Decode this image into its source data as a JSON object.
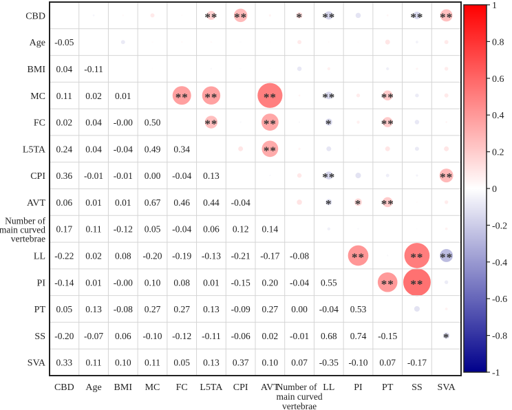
{
  "chart_data": {
    "type": "heatmap",
    "subtype": "correlation-matrix (lower: values, upper: circles + significance)",
    "title": "",
    "variables": [
      "CBD",
      "Age",
      "BMI",
      "MC",
      "FC",
      "L5TA",
      "CPI",
      "AVT",
      "Number of main curved vertebrae",
      "LL",
      "PI",
      "PT",
      "SS",
      "SVA"
    ],
    "x_labels": [
      "CBD",
      "Age",
      "BMI",
      "MC",
      "FC",
      "L5TA",
      "CPI",
      "AVT",
      "Number of main curved vertebrae",
      "LL",
      "PI",
      "PT",
      "SS",
      "SVA"
    ],
    "y_labels": [
      "CBD",
      "Age",
      "BMI",
      "MC",
      "FC",
      "L5TA",
      "CPI",
      "AVT",
      "Number of main curved vertebrae",
      "LL",
      "PI",
      "PT",
      "SS",
      "SVA"
    ],
    "lower_triangle_values": [
      [],
      [
        "-0.05"
      ],
      [
        "0.04",
        "-0.11"
      ],
      [
        "0.11",
        "0.02",
        "0.01"
      ],
      [
        "0.02",
        "0.04",
        "-0.00",
        "0.50"
      ],
      [
        "0.24",
        "0.04",
        "-0.04",
        "0.49",
        "0.34"
      ],
      [
        "0.36",
        "-0.01",
        "-0.01",
        "0.00",
        "-0.04",
        "0.13"
      ],
      [
        "0.06",
        "0.01",
        "0.01",
        "0.67",
        "0.46",
        "0.44",
        "-0.04"
      ],
      [
        "0.17",
        "0.11",
        "-0.12",
        "0.05",
        "-0.04",
        "0.06",
        "0.12",
        "0.14"
      ],
      [
        "-0.22",
        "0.02",
        "0.08",
        "-0.20",
        "-0.19",
        "-0.13",
        "-0.21",
        "-0.17",
        "-0.08"
      ],
      [
        "-0.14",
        "0.01",
        "-0.00",
        "0.10",
        "0.08",
        "0.01",
        "-0.15",
        "0.20",
        "-0.04",
        "0.55"
      ],
      [
        "0.05",
        "0.13",
        "-0.08",
        "0.27",
        "0.27",
        "0.13",
        "-0.09",
        "0.27",
        "0.00",
        "-0.04",
        "0.53"
      ],
      [
        "-0.20",
        "-0.07",
        "0.06",
        "-0.10",
        "-0.12",
        "-0.11",
        "-0.06",
        "0.02",
        "-0.01",
        "0.68",
        "0.74",
        "-0.15"
      ],
      [
        "0.33",
        "0.11",
        "0.10",
        "0.11",
        "0.05",
        "0.13",
        "0.37",
        "0.10",
        "0.07",
        "-0.35",
        "-0.10",
        "0.07",
        "-0.17"
      ]
    ],
    "significance_upper": [
      {
        "row": "CBD",
        "col": "L5TA",
        "stars": "**"
      },
      {
        "row": "CBD",
        "col": "CPI",
        "stars": "**"
      },
      {
        "row": "CBD",
        "col": "Number of main curved vertebrae",
        "stars": "*"
      },
      {
        "row": "CBD",
        "col": "LL",
        "stars": "**"
      },
      {
        "row": "CBD",
        "col": "SS",
        "stars": "**"
      },
      {
        "row": "CBD",
        "col": "SVA",
        "stars": "**"
      },
      {
        "row": "MC",
        "col": "FC",
        "stars": "**"
      },
      {
        "row": "MC",
        "col": "L5TA",
        "stars": "**"
      },
      {
        "row": "MC",
        "col": "AVT",
        "stars": "**"
      },
      {
        "row": "MC",
        "col": "LL",
        "stars": "**"
      },
      {
        "row": "MC",
        "col": "PT",
        "stars": "**"
      },
      {
        "row": "FC",
        "col": "L5TA",
        "stars": "**"
      },
      {
        "row": "FC",
        "col": "AVT",
        "stars": "**"
      },
      {
        "row": "FC",
        "col": "LL",
        "stars": "*"
      },
      {
        "row": "FC",
        "col": "PT",
        "stars": "**"
      },
      {
        "row": "L5TA",
        "col": "AVT",
        "stars": "**"
      },
      {
        "row": "CPI",
        "col": "LL",
        "stars": "**"
      },
      {
        "row": "CPI",
        "col": "SVA",
        "stars": "**"
      },
      {
        "row": "AVT",
        "col": "LL",
        "stars": "*"
      },
      {
        "row": "AVT",
        "col": "PI",
        "stars": "*"
      },
      {
        "row": "AVT",
        "col": "PT",
        "stars": "**"
      },
      {
        "row": "LL",
        "col": "PI",
        "stars": "**"
      },
      {
        "row": "LL",
        "col": "SS",
        "stars": "**"
      },
      {
        "row": "LL",
        "col": "SVA",
        "stars": "**"
      },
      {
        "row": "PI",
        "col": "PT",
        "stars": "**"
      },
      {
        "row": "PI",
        "col": "SS",
        "stars": "**"
      },
      {
        "row": "SS",
        "col": "SVA",
        "stars": "*"
      }
    ],
    "colorbar": {
      "range": [
        -1,
        1
      ],
      "ticks": [
        "1",
        "0.8",
        "0.6",
        "0.4",
        "0.2",
        "0",
        "-0.2",
        "-0.4",
        "-0.6",
        "-0.8",
        "-1"
      ],
      "colors": {
        "positive": "#ff0000",
        "zero": "#ffffff",
        "negative": "#00008b"
      }
    },
    "grid": true,
    "legend_position": "right"
  }
}
